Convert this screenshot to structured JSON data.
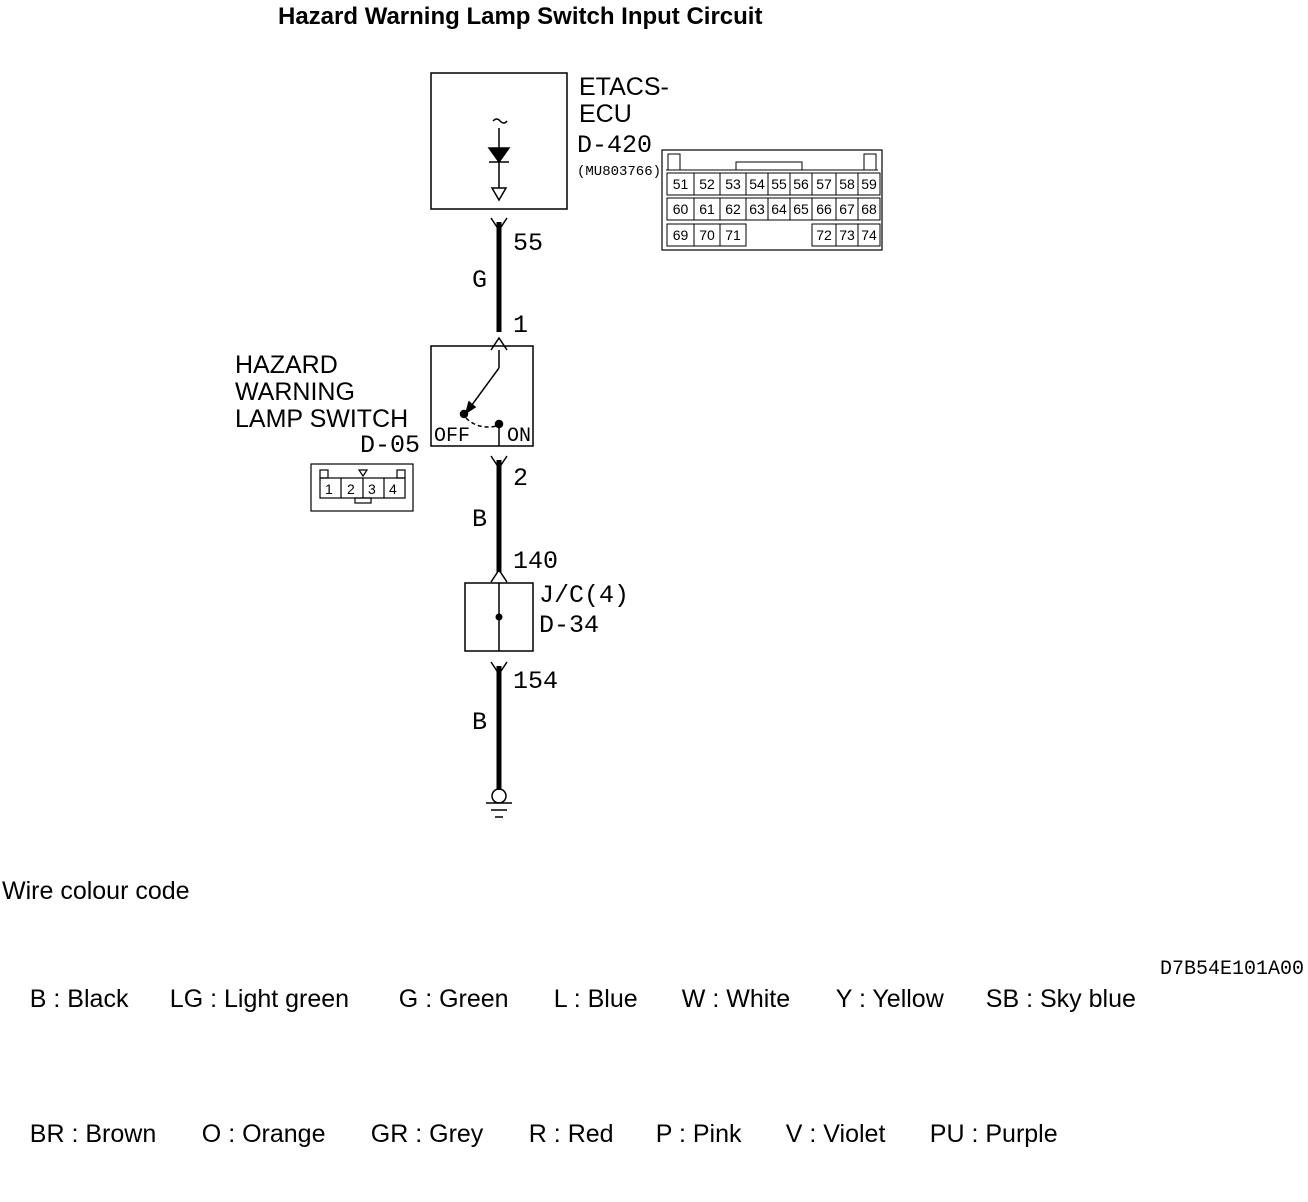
{
  "title": "Hazard Warning Lamp Switch Input Circuit",
  "ecu": {
    "name_line1": "ETACS-",
    "name_line2": "ECU",
    "connector": "D-420",
    "part_number": "(MU803766)",
    "pin_top": "55",
    "connector_rows": [
      [
        "51",
        "52",
        "53",
        "54",
        "55",
        "56",
        "57",
        "58",
        "59"
      ],
      [
        "60",
        "61",
        "62",
        "63",
        "64",
        "65",
        "66",
        "67",
        "68"
      ],
      [
        "69",
        "70",
        "71",
        "72",
        "73",
        "74"
      ]
    ]
  },
  "wire1": {
    "color": "G",
    "to_pin": "1"
  },
  "switch": {
    "name_line1": "HAZARD",
    "name_line2": "WARNING",
    "name_line3": "LAMP SWITCH",
    "connector": "D-05",
    "off_label": "OFF",
    "on_label": "ON",
    "pin_bottom": "2",
    "connector_pins": [
      "1",
      "2",
      "3",
      "4"
    ]
  },
  "wire2": {
    "color": "B",
    "to_pin": "140"
  },
  "junction": {
    "name": "J/C(4)",
    "connector": "D-34",
    "pin_bottom": "154"
  },
  "wire3": {
    "color": "B"
  },
  "legend": {
    "heading": "Wire colour code",
    "row1": [
      "B : Black",
      "LG : Light green",
      "G : Green",
      "L : Blue",
      "W : White",
      "Y : Yellow",
      "SB : Sky blue"
    ],
    "row2": [
      "BR : Brown",
      "O : Orange",
      "GR : Grey",
      "R : Red",
      "P : Pink",
      "V : Violet",
      "PU : Purple"
    ]
  },
  "diagram_code": "D7B54E101A00"
}
